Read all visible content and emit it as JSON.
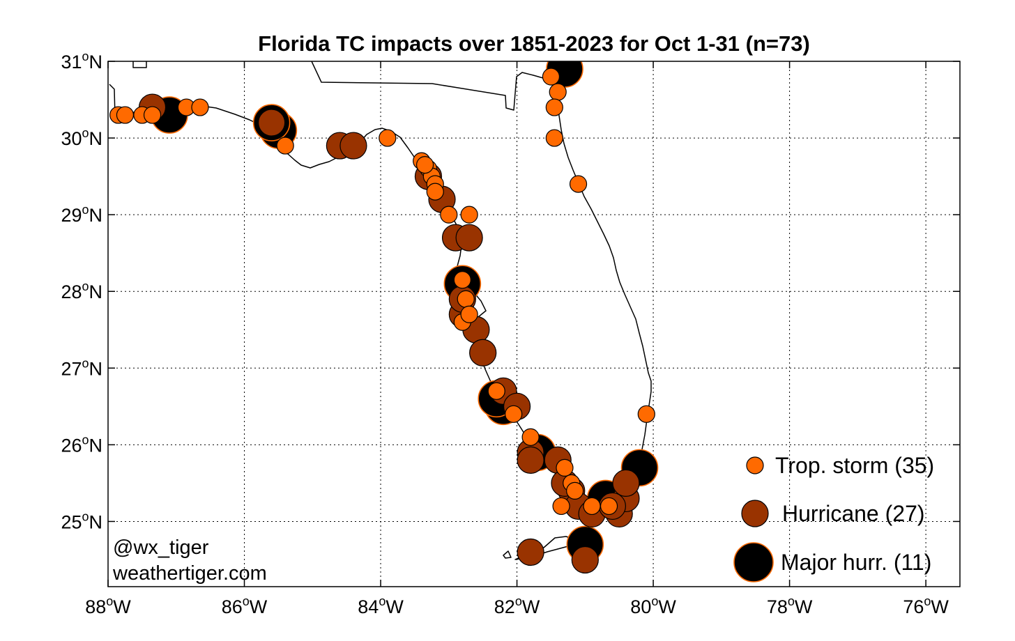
{
  "chart_data": {
    "type": "scatter",
    "title": "Florida TC impacts over 1851-2023 for Oct 1-31 (n=73)",
    "xlim": [
      -88,
      -75.5
    ],
    "ylim": [
      24.15,
      31
    ],
    "x_ticks": [
      {
        "value": -88,
        "label": "88",
        "unit": "o",
        "hemi": "W"
      },
      {
        "value": -86,
        "label": "86",
        "unit": "o",
        "hemi": "W"
      },
      {
        "value": -84,
        "label": "84",
        "unit": "o",
        "hemi": "W"
      },
      {
        "value": -82,
        "label": "82",
        "unit": "o",
        "hemi": "W"
      },
      {
        "value": -80,
        "label": "80",
        "unit": "o",
        "hemi": "W"
      },
      {
        "value": -78,
        "label": "78",
        "unit": "o",
        "hemi": "W"
      },
      {
        "value": -76,
        "label": "76",
        "unit": "o",
        "hemi": "W"
      }
    ],
    "y_ticks": [
      {
        "value": 31,
        "label": "31",
        "unit": "o",
        "hemi": "N"
      },
      {
        "value": 30,
        "label": "30",
        "unit": "o",
        "hemi": "N"
      },
      {
        "value": 29,
        "label": "29",
        "unit": "o",
        "hemi": "N"
      },
      {
        "value": 28,
        "label": "28",
        "unit": "o",
        "hemi": "N"
      },
      {
        "value": 27,
        "label": "27",
        "unit": "o",
        "hemi": "N"
      },
      {
        "value": 26,
        "label": "26",
        "unit": "o",
        "hemi": "N"
      },
      {
        "value": 25,
        "label": "25",
        "unit": "o",
        "hemi": "N"
      }
    ],
    "grid": true,
    "legend_position": "bottom-right",
    "credits": [
      "@wx_tiger",
      "weathertiger.com"
    ],
    "series": [
      {
        "name": "Major hurr.",
        "legend_label": "Major hurr. (11)",
        "count": 11,
        "color": "#000000",
        "edge_color": "#FF6A00",
        "points": [
          [
            -87.1,
            30.3
          ],
          [
            -85.5,
            30.1
          ],
          [
            -81.3,
            30.9
          ],
          [
            -82.8,
            28.1
          ],
          [
            -82.2,
            26.5
          ],
          [
            -81.7,
            25.9
          ],
          [
            -80.2,
            25.7
          ],
          [
            -80.7,
            25.3
          ],
          [
            -81.0,
            24.7
          ],
          [
            -85.6,
            30.2
          ],
          [
            -82.3,
            26.6
          ]
        ]
      },
      {
        "name": "Hurricane",
        "legend_label": "Hurricane (27)",
        "count": 27,
        "color": "#993300",
        "edge_color": "#000000",
        "points": [
          [
            -87.35,
            30.4
          ],
          [
            -85.6,
            30.2
          ],
          [
            -84.6,
            29.9
          ],
          [
            -84.4,
            29.9
          ],
          [
            -83.1,
            29.2
          ],
          [
            -82.9,
            28.7
          ],
          [
            -82.7,
            28.7
          ],
          [
            -82.8,
            27.7
          ],
          [
            -82.6,
            27.5
          ],
          [
            -82.5,
            27.2
          ],
          [
            -82.2,
            26.7
          ],
          [
            -82.0,
            26.5
          ],
          [
            -81.8,
            25.9
          ],
          [
            -81.8,
            25.8
          ],
          [
            -81.4,
            25.8
          ],
          [
            -81.2,
            25.4
          ],
          [
            -81.1,
            25.2
          ],
          [
            -80.9,
            25.1
          ],
          [
            -80.5,
            25.1
          ],
          [
            -80.4,
            25.3
          ],
          [
            -80.4,
            25.5
          ],
          [
            -81.8,
            24.6
          ],
          [
            -81.0,
            24.5
          ],
          [
            -83.3,
            29.5
          ],
          [
            -82.8,
            27.9
          ],
          [
            -81.3,
            25.5
          ],
          [
            -80.6,
            25.2
          ]
        ]
      },
      {
        "name": "Trop. storm",
        "legend_label": "Trop. storm (35)",
        "count": 35,
        "color": "#FF6A00",
        "edge_color": "#000000",
        "points": [
          [
            -87.85,
            30.3
          ],
          [
            -87.75,
            30.3
          ],
          [
            -87.5,
            30.3
          ],
          [
            -87.35,
            30.3
          ],
          [
            -86.85,
            30.4
          ],
          [
            -86.65,
            30.4
          ],
          [
            -85.4,
            29.9
          ],
          [
            -83.9,
            30.0
          ],
          [
            -81.5,
            30.8
          ],
          [
            -81.4,
            30.6
          ],
          [
            -81.45,
            30.4
          ],
          [
            -81.45,
            30.0
          ],
          [
            -81.1,
            29.4
          ],
          [
            -83.4,
            29.7
          ],
          [
            -83.3,
            29.6
          ],
          [
            -83.25,
            29.5
          ],
          [
            -83.2,
            29.4
          ],
          [
            -83.2,
            29.3
          ],
          [
            -83.0,
            29.0
          ],
          [
            -82.7,
            29.0
          ],
          [
            -82.8,
            28.15
          ],
          [
            -82.75,
            27.9
          ],
          [
            -82.8,
            27.6
          ],
          [
            -82.3,
            26.7
          ],
          [
            -82.05,
            26.4
          ],
          [
            -81.8,
            26.1
          ],
          [
            -81.3,
            25.7
          ],
          [
            -81.2,
            25.5
          ],
          [
            -81.35,
            25.2
          ],
          [
            -81.15,
            25.4
          ],
          [
            -80.9,
            25.2
          ],
          [
            -80.65,
            25.2
          ],
          [
            -80.1,
            26.4
          ],
          [
            -82.7,
            27.7
          ],
          [
            -83.35,
            29.65
          ]
        ]
      }
    ]
  }
}
